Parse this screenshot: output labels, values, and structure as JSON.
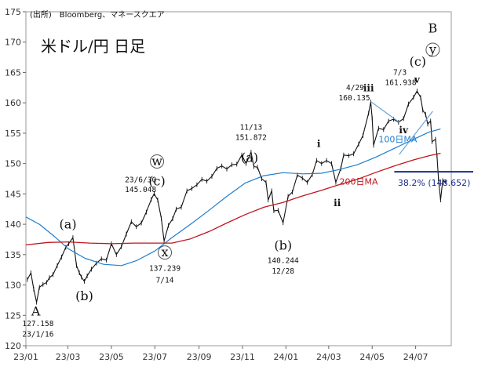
{
  "source": "(出所)　Bloomberg、マネースクエア",
  "title": "米ドル/円 日足",
  "colors": {
    "price": "#111111",
    "ma100": "#1e7fd0",
    "ma200": "#c0161e",
    "trendline": "#6aa6d8",
    "fib": "#1a2c8c",
    "grid": "#e6e6e6"
  },
  "chart_data": {
    "type": "line",
    "ylim": [
      120,
      175
    ],
    "xlim": [
      "2023-01-01",
      "2024-08-20"
    ],
    "yticks": [
      120,
      125,
      130,
      135,
      140,
      145,
      150,
      155,
      160,
      165,
      170,
      175
    ],
    "xticks": [
      {
        "date": "2023-01-01",
        "label": "23/01"
      },
      {
        "date": "2023-03-01",
        "label": "23/03"
      },
      {
        "date": "2023-05-01",
        "label": "23/05"
      },
      {
        "date": "2023-07-01",
        "label": "23/07"
      },
      {
        "date": "2023-09-01",
        "label": "23/09"
      },
      {
        "date": "2023-11-01",
        "label": "23/11"
      },
      {
        "date": "2024-01-01",
        "label": "24/01"
      },
      {
        "date": "2024-03-01",
        "label": "24/03"
      },
      {
        "date": "2024-05-01",
        "label": "24/05"
      },
      {
        "date": "2024-07-01",
        "label": "24/07"
      }
    ],
    "series": [
      {
        "name": "USDJPY",
        "key": "price",
        "points": [
          [
            "2023-01-03",
            130.9
          ],
          [
            "2023-01-08",
            132.0
          ],
          [
            "2023-01-12",
            129.3
          ],
          [
            "2023-01-16",
            127.158
          ],
          [
            "2023-01-20",
            129.6
          ],
          [
            "2023-01-25",
            130.1
          ],
          [
            "2023-01-30",
            130.4
          ],
          [
            "2023-02-03",
            131.2
          ],
          [
            "2023-02-08",
            131.7
          ],
          [
            "2023-02-14",
            133.2
          ],
          [
            "2023-02-20",
            134.6
          ],
          [
            "2023-02-26",
            136.2
          ],
          [
            "2023-03-02",
            136.8
          ],
          [
            "2023-03-08",
            137.8
          ],
          [
            "2023-03-13",
            133.2
          ],
          [
            "2023-03-17",
            132.0
          ],
          [
            "2023-03-20",
            131.3
          ],
          [
            "2023-03-24",
            130.6
          ],
          [
            "2023-03-28",
            131.5
          ],
          [
            "2023-04-03",
            132.6
          ],
          [
            "2023-04-10",
            133.6
          ],
          [
            "2023-04-17",
            134.3
          ],
          [
            "2023-04-24",
            134.1
          ],
          [
            "2023-05-01",
            136.8
          ],
          [
            "2023-05-08",
            135.0
          ],
          [
            "2023-05-15",
            136.3
          ],
          [
            "2023-05-22",
            138.4
          ],
          [
            "2023-05-29",
            140.4
          ],
          [
            "2023-06-05",
            139.6
          ],
          [
            "2023-06-12",
            140.2
          ],
          [
            "2023-06-19",
            142.0
          ],
          [
            "2023-06-26",
            144.1
          ],
          [
            "2023-06-30",
            145.048
          ],
          [
            "2023-07-05",
            144.0
          ],
          [
            "2023-07-10",
            141.0
          ],
          [
            "2023-07-14",
            137.239
          ],
          [
            "2023-07-20",
            139.8
          ],
          [
            "2023-07-26",
            140.9
          ],
          [
            "2023-07-31",
            142.5
          ],
          [
            "2023-08-07",
            142.8
          ],
          [
            "2023-08-15",
            145.5
          ],
          [
            "2023-08-22",
            145.9
          ],
          [
            "2023-08-29",
            146.5
          ],
          [
            "2023-09-05",
            147.4
          ],
          [
            "2023-09-12",
            147.1
          ],
          [
            "2023-09-19",
            147.9
          ],
          [
            "2023-09-26",
            149.2
          ],
          [
            "2023-10-03",
            149.6
          ],
          [
            "2023-10-10",
            149.1
          ],
          [
            "2023-10-17",
            149.8
          ],
          [
            "2023-10-24",
            149.9
          ],
          [
            "2023-10-31",
            151.4
          ],
          [
            "2023-11-06",
            150.0
          ],
          [
            "2023-11-13",
            151.872
          ],
          [
            "2023-11-17",
            149.5
          ],
          [
            "2023-11-22",
            149.4
          ],
          [
            "2023-11-28",
            147.5
          ],
          [
            "2023-12-04",
            146.9
          ],
          [
            "2023-12-07",
            144.0
          ],
          [
            "2023-12-12",
            145.5
          ],
          [
            "2023-12-15",
            142.2
          ],
          [
            "2023-12-21",
            142.3
          ],
          [
            "2023-12-28",
            140.244
          ],
          [
            "2024-01-04",
            144.6
          ],
          [
            "2024-01-10",
            145.3
          ],
          [
            "2024-01-17",
            148.1
          ],
          [
            "2024-01-24",
            147.6
          ],
          [
            "2024-01-31",
            146.9
          ],
          [
            "2024-02-07",
            148.2
          ],
          [
            "2024-02-13",
            150.5
          ],
          [
            "2024-02-20",
            150.0
          ],
          [
            "2024-02-27",
            150.5
          ],
          [
            "2024-03-05",
            150.0
          ],
          [
            "2024-03-11",
            146.9
          ],
          [
            "2024-03-18",
            149.2
          ],
          [
            "2024-03-22",
            151.4
          ],
          [
            "2024-03-29",
            151.3
          ],
          [
            "2024-04-05",
            151.6
          ],
          [
            "2024-04-12",
            153.2
          ],
          [
            "2024-04-18",
            154.6
          ],
          [
            "2024-04-26",
            158.3
          ],
          [
            "2024-04-29",
            160.135
          ],
          [
            "2024-05-01",
            157.5
          ],
          [
            "2024-05-03",
            153.0
          ],
          [
            "2024-05-10",
            155.8
          ],
          [
            "2024-05-17",
            155.6
          ],
          [
            "2024-05-24",
            157.0
          ],
          [
            "2024-05-31",
            157.3
          ],
          [
            "2024-06-07",
            156.8
          ],
          [
            "2024-06-14",
            157.4
          ],
          [
            "2024-06-21",
            159.8
          ],
          [
            "2024-06-28",
            160.9
          ],
          [
            "2024-07-03",
            161.938
          ],
          [
            "2024-07-08",
            160.9
          ],
          [
            "2024-07-11",
            158.8
          ],
          [
            "2024-07-15",
            158.1
          ],
          [
            "2024-07-18",
            156.5
          ],
          [
            "2024-07-22",
            157.0
          ],
          [
            "2024-07-24",
            153.6
          ],
          [
            "2024-07-29",
            154.0
          ],
          [
            "2024-07-31",
            151.3
          ],
          [
            "2024-08-02",
            147.5
          ],
          [
            "2024-08-05",
            144.0
          ],
          [
            "2024-08-08",
            147.2
          ],
          [
            "2024-08-12",
            147.0
          ]
        ]
      },
      {
        "name": "100日MA",
        "key": "ma100",
        "points": [
          [
            "2023-01-01",
            141.2
          ],
          [
            "2023-01-20",
            140.0
          ],
          [
            "2023-02-10",
            138.0
          ],
          [
            "2023-03-01",
            136.0
          ],
          [
            "2023-03-25",
            134.4
          ],
          [
            "2023-04-20",
            133.4
          ],
          [
            "2023-05-15",
            133.2
          ],
          [
            "2023-06-05",
            134.0
          ],
          [
            "2023-07-01",
            135.6
          ],
          [
            "2023-07-25",
            137.8
          ],
          [
            "2023-08-20",
            140.0
          ],
          [
            "2023-09-15",
            142.3
          ],
          [
            "2023-10-10",
            144.6
          ],
          [
            "2023-11-05",
            146.8
          ],
          [
            "2023-12-01",
            148.0
          ],
          [
            "2023-12-28",
            148.5
          ],
          [
            "2024-01-25",
            148.3
          ],
          [
            "2024-02-20",
            148.4
          ],
          [
            "2024-03-15",
            149.0
          ],
          [
            "2024-04-10",
            149.8
          ],
          [
            "2024-05-05",
            151.0
          ],
          [
            "2024-06-01",
            152.5
          ],
          [
            "2024-06-28",
            154.0
          ],
          [
            "2024-07-20",
            155.2
          ],
          [
            "2024-08-05",
            155.7
          ]
        ]
      },
      {
        "name": "200日MA",
        "key": "ma200",
        "points": [
          [
            "2023-01-01",
            136.6
          ],
          [
            "2023-02-01",
            137.0
          ],
          [
            "2023-03-01",
            137.1
          ],
          [
            "2023-04-01",
            136.9
          ],
          [
            "2023-05-01",
            136.8
          ],
          [
            "2023-06-01",
            136.9
          ],
          [
            "2023-07-01",
            136.9
          ],
          [
            "2023-07-25",
            136.9
          ],
          [
            "2023-08-20",
            137.6
          ],
          [
            "2023-09-15",
            138.8
          ],
          [
            "2023-10-10",
            140.2
          ],
          [
            "2023-11-05",
            141.6
          ],
          [
            "2023-12-01",
            142.8
          ],
          [
            "2023-12-28",
            143.6
          ],
          [
            "2024-01-25",
            144.7
          ],
          [
            "2024-02-20",
            145.6
          ],
          [
            "2024-03-15",
            146.5
          ],
          [
            "2024-04-10",
            147.4
          ],
          [
            "2024-05-05",
            148.5
          ],
          [
            "2024-06-01",
            149.6
          ],
          [
            "2024-06-28",
            150.6
          ],
          [
            "2024-07-20",
            151.3
          ],
          [
            "2024-08-05",
            151.7
          ]
        ]
      }
    ],
    "trendlines": [
      {
        "from": [
          "2024-04-29",
          160.2
        ],
        "to": [
          "2024-06-08",
          156.8
        ]
      },
      {
        "from": [
          "2024-06-08",
          151.5
        ],
        "to": [
          "2024-07-25",
          158.6
        ]
      }
    ],
    "fib_level": {
      "value": 148.652,
      "start": "2024-06-01",
      "end": "2024-08-20",
      "label": "38.2% (148.652)"
    },
    "annotations": [
      {
        "key": "A",
        "text": "A",
        "date": "2023-01-15",
        "y": 125.0,
        "style": "wave"
      },
      {
        "key": "A-val",
        "text": "127.158",
        "date": "2023-01-18",
        "y": 123.2,
        "style": "ann-sm"
      },
      {
        "key": "A-date",
        "text": "23/1/16",
        "date": "2023-01-18",
        "y": 121.5,
        "style": "ann-sm"
      },
      {
        "key": "a1",
        "text": "(a)",
        "date": "2023-03-01",
        "y": 139.3,
        "style": "wave"
      },
      {
        "key": "b1",
        "text": "(b)",
        "date": "2023-03-24",
        "y": 127.5,
        "style": "wave"
      },
      {
        "key": "w",
        "text": "w",
        "date": "2023-07-04",
        "y": 149.7,
        "style": "wave-circle"
      },
      {
        "key": "w-c",
        "text": "(c)",
        "date": "2023-07-04",
        "y": 146.4,
        "style": "wave"
      },
      {
        "key": "w-date",
        "text": "23/6/30",
        "date": "2023-06-11",
        "y": 146.9,
        "style": "ann-sm"
      },
      {
        "key": "w-val",
        "text": "145.048",
        "date": "2023-06-11",
        "y": 145.3,
        "style": "ann-sm"
      },
      {
        "key": "x",
        "text": "x",
        "date": "2023-07-15",
        "y": 134.7,
        "style": "wave-circle"
      },
      {
        "key": "x-val",
        "text": "137.239",
        "date": "2023-07-15",
        "y": 132.3,
        "style": "ann-sm"
      },
      {
        "key": "x-date",
        "text": "7/14",
        "date": "2023-07-15",
        "y": 130.4,
        "style": "ann-sm"
      },
      {
        "key": "nov-date",
        "text": "11/13",
        "date": "2023-11-13",
        "y": 155.6,
        "style": "ann-sm"
      },
      {
        "key": "nov-val",
        "text": "151.872",
        "date": "2023-11-13",
        "y": 153.9,
        "style": "ann-sm"
      },
      {
        "key": "a2",
        "text": "(a)",
        "date": "2023-11-11",
        "y": 150.3,
        "style": "wave"
      },
      {
        "key": "b2",
        "text": "(b)",
        "date": "2023-12-28",
        "y": 135.8,
        "style": "wave"
      },
      {
        "key": "dec-val",
        "text": "140.244",
        "date": "2023-12-28",
        "y": 133.6,
        "style": "ann-sm"
      },
      {
        "key": "dec-date",
        "text": "12/28",
        "date": "2023-12-28",
        "y": 131.9,
        "style": "ann-sm"
      },
      {
        "key": "i",
        "text": "i",
        "date": "2024-02-16",
        "y": 152.7,
        "style": "wave-sm"
      },
      {
        "key": "ii",
        "text": "ii",
        "date": "2024-03-13",
        "y": 143.0,
        "style": "wave-sm"
      },
      {
        "key": "iii",
        "text": "iii",
        "date": "2024-04-26",
        "y": 161.9,
        "style": "wave-sm"
      },
      {
        "key": "apr-date",
        "text": "4/29",
        "date": "2024-04-07",
        "y": 162.1,
        "style": "ann-sm"
      },
      {
        "key": "apr-val",
        "text": "160.135",
        "date": "2024-04-06",
        "y": 160.4,
        "style": "ann-sm"
      },
      {
        "key": "iv",
        "text": "iv",
        "date": "2024-06-14",
        "y": 155.0,
        "style": "wave-sm"
      },
      {
        "key": "v",
        "text": "v",
        "date": "2024-07-03",
        "y": 163.3,
        "style": "wave-sm"
      },
      {
        "key": "jul-date",
        "text": "7/3",
        "date": "2024-06-09",
        "y": 164.6,
        "style": "ann-sm"
      },
      {
        "key": "jul-val",
        "text": "161.938",
        "date": "2024-06-10",
        "y": 162.9,
        "style": "ann-sm"
      },
      {
        "key": "c3",
        "text": "(c)",
        "date": "2024-07-04",
        "y": 166.1,
        "style": "wave"
      },
      {
        "key": "y",
        "text": "y",
        "date": "2024-07-25",
        "y": 168.1,
        "style": "wave-circle"
      },
      {
        "key": "B",
        "text": "B",
        "date": "2024-07-25",
        "y": 171.6,
        "style": "wave"
      },
      {
        "key": "ma100-lbl",
        "text": "100日MA",
        "date": "2024-06-06",
        "y": 153.5,
        "style": "ma100"
      },
      {
        "key": "ma200-lbl",
        "text": "200日MA",
        "date": "2024-04-12",
        "y": 146.5,
        "style": "ma200"
      }
    ]
  }
}
